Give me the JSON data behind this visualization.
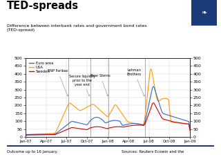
{
  "title": "TED-spreads",
  "subtitle": "Difference between interbank rates and government bond rates\n(TED-spread)",
  "footer_left": "Outcome up to 16 January.",
  "footer_right": "Sources: Reuters Ecowin and the",
  "ylim": [
    0,
    500
  ],
  "yticks": [
    0,
    50,
    100,
    150,
    200,
    250,
    300,
    350,
    400,
    450,
    500
  ],
  "xtick_labels": [
    "Jan-07",
    "Apr-07",
    "Jul-07",
    "Oct-07",
    "Jan-08",
    "Apr-08",
    "Jul-08",
    "Oct-08",
    "Jan-09"
  ],
  "legend": [
    {
      "label": "Euro area",
      "color": "#3366cc"
    },
    {
      "label": "USA",
      "color": "#ff9900"
    },
    {
      "label": "Sweden",
      "color": "#cc0000"
    }
  ],
  "background_color": "#ffffff",
  "grid_color": "#cccccc",
  "title_color": "#000000",
  "logo_color": "#1a3a7a",
  "separator_color": "#1a3a7a"
}
